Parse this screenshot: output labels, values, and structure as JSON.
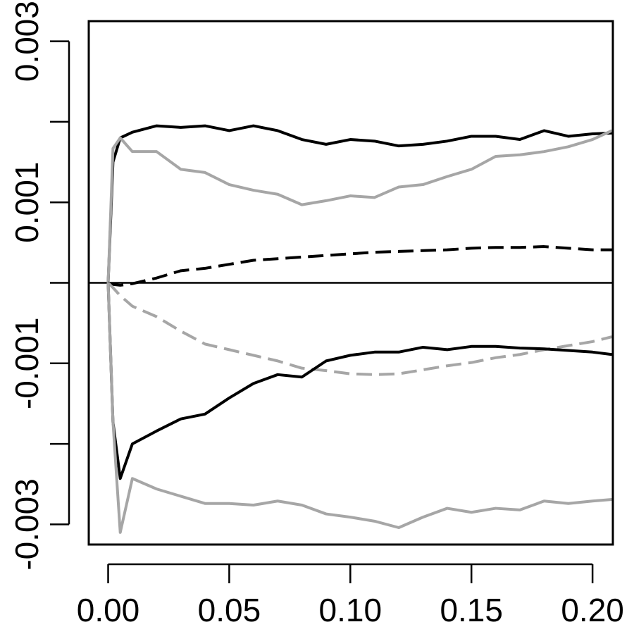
{
  "chart_data": {
    "type": "line",
    "x": [
      0,
      0.002,
      0.005,
      0.01,
      0.02,
      0.03,
      0.04,
      0.05,
      0.06,
      0.07,
      0.08,
      0.09,
      0.1,
      0.11,
      0.12,
      0.13,
      0.14,
      0.15,
      0.16,
      0.17,
      0.18,
      0.19,
      0.2,
      0.208
    ],
    "series": [
      {
        "color": "#000000",
        "linestyle": "solid",
        "values": [
          0,
          0.0015,
          0.0018,
          0.00187,
          0.00195,
          0.00193,
          0.00195,
          0.00189,
          0.00195,
          0.00189,
          0.00178,
          0.00172,
          0.00178,
          0.00176,
          0.0017,
          0.00172,
          0.00176,
          0.00182,
          0.00182,
          0.00178,
          0.00189,
          0.00182,
          0.00185,
          0.00186
        ]
      },
      {
        "color": "#a6a6a6",
        "linestyle": "solid",
        "values": [
          0,
          0.00167,
          0.0018,
          0.00163,
          0.00163,
          0.00141,
          0.00137,
          0.00122,
          0.00115,
          0.0011,
          0.00097,
          0.00102,
          0.00108,
          0.00106,
          0.00119,
          0.00122,
          0.00132,
          0.00141,
          0.00157,
          0.00159,
          0.00163,
          0.00169,
          0.00178,
          0.00189
        ]
      },
      {
        "color": "#000000",
        "linestyle": "dashed",
        "values": [
          0,
          -2e-05,
          -3e-05,
          -1e-05,
          6e-05,
          0.00015,
          0.00018,
          0.00023,
          0.00028,
          0.0003,
          0.00032,
          0.00034,
          0.00036,
          0.00038,
          0.00039,
          0.0004,
          0.00041,
          0.00043,
          0.00044,
          0.00044,
          0.00045,
          0.00043,
          0.00041,
          0.00041
        ]
      },
      {
        "color": "#a6a6a6",
        "linestyle": "dashed",
        "values": [
          0,
          -6e-05,
          -0.00016,
          -0.00029,
          -0.00042,
          -0.0006,
          -0.00076,
          -0.00083,
          -0.0009,
          -0.00097,
          -0.00106,
          -0.00109,
          -0.00113,
          -0.00114,
          -0.00113,
          -0.00108,
          -0.00103,
          -0.00099,
          -0.00093,
          -0.00089,
          -0.00083,
          -0.00078,
          -0.00073,
          -0.00067
        ]
      },
      {
        "color": "#000000",
        "linestyle": "solid",
        "values": [
          0,
          -0.00173,
          -0.00243,
          -0.002,
          -0.00184,
          -0.00169,
          -0.00163,
          -0.00143,
          -0.00125,
          -0.00114,
          -0.00117,
          -0.00097,
          -0.0009,
          -0.00086,
          -0.00086,
          -0.0008,
          -0.00083,
          -0.00079,
          -0.00079,
          -0.00081,
          -0.00082,
          -0.00084,
          -0.00086,
          -0.00089
        ]
      },
      {
        "color": "#a6a6a6",
        "linestyle": "solid",
        "values": [
          0,
          -0.00173,
          -0.0031,
          -0.00243,
          -0.00256,
          -0.00265,
          -0.00274,
          -0.00274,
          -0.00276,
          -0.00271,
          -0.00276,
          -0.00287,
          -0.00291,
          -0.00296,
          -0.00304,
          -0.00291,
          -0.0028,
          -0.00285,
          -0.0028,
          -0.00282,
          -0.00271,
          -0.00274,
          -0.00271,
          -0.00269
        ]
      }
    ],
    "hline": 0,
    "xlim": [
      -0.008,
      0.2084
    ],
    "ylim": [
      -0.00325,
      0.00325
    ],
    "xticks": [
      {
        "value": 0,
        "label": "0.00"
      },
      0.05,
      {
        "value": 0.1,
        "label": "0.10"
      },
      0.15,
      {
        "value": 0.2,
        "label": "0.20"
      }
    ],
    "yticks": [
      0.003,
      0.001,
      -0.001,
      -0.003
    ],
    "yminor_ticks": [
      0.002,
      0,
      -0.002
    ]
  }
}
